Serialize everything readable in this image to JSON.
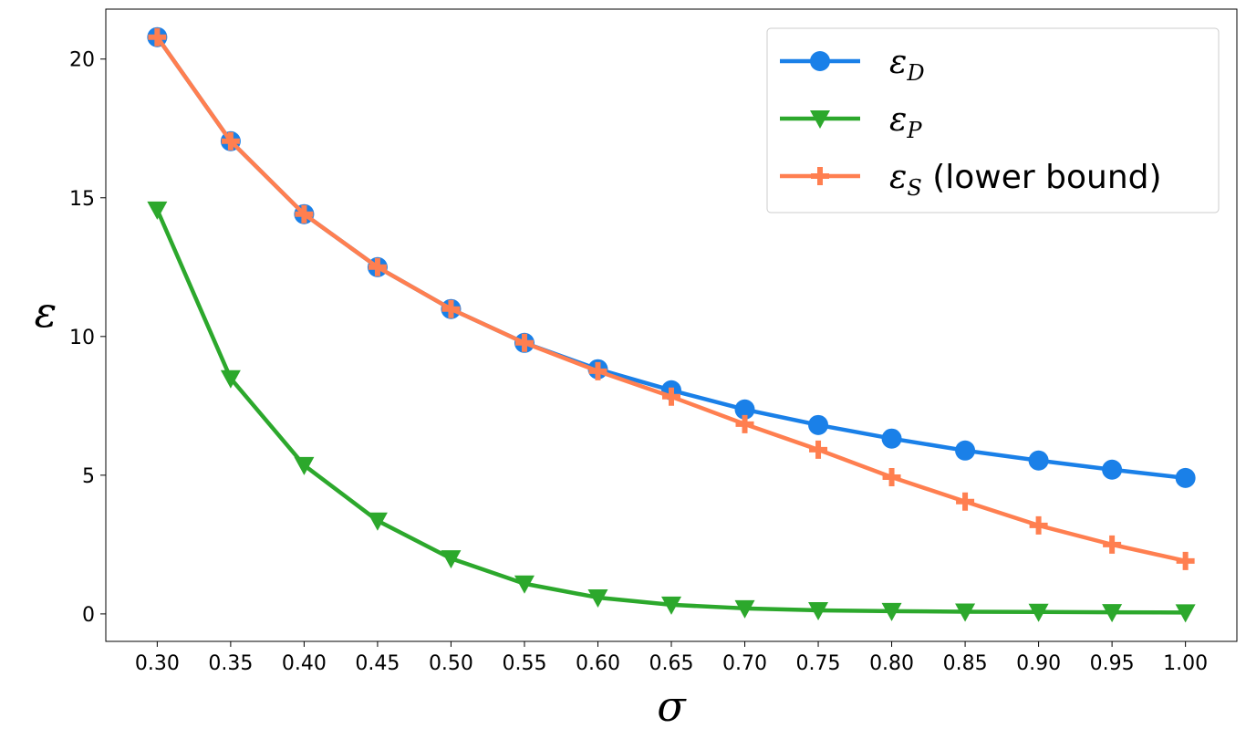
{
  "chart_data": {
    "type": "line",
    "title": "",
    "xlabel": "σ",
    "ylabel": "ε",
    "xlim": [
      0.265,
      1.035
    ],
    "ylim": [
      -0.99,
      21.8
    ],
    "grid": false,
    "legend_position": "top-right",
    "x": [
      0.3,
      0.35,
      0.4,
      0.45,
      0.5,
      0.55,
      0.6,
      0.65,
      0.7,
      0.75,
      0.8,
      0.85,
      0.9,
      0.95,
      1.0
    ],
    "x_ticks": [
      "0.30",
      "0.35",
      "0.40",
      "0.45",
      "0.50",
      "0.55",
      "0.60",
      "0.65",
      "0.70",
      "0.75",
      "0.80",
      "0.85",
      "0.90",
      "0.95",
      "1.00"
    ],
    "y_ticks": [
      "0",
      "5",
      "10",
      "15",
      "20"
    ],
    "series": [
      {
        "name": "ε_D",
        "name_main": "ε",
        "name_sub": "D",
        "name_suffix": "",
        "color": "#1a80e8",
        "marker": "circle",
        "values": [
          20.79,
          17.04,
          14.41,
          12.5,
          10.99,
          9.77,
          8.82,
          8.06,
          7.37,
          6.81,
          6.32,
          5.89,
          5.53,
          5.2,
          4.9
        ]
      },
      {
        "name": "ε_P",
        "name_main": "ε",
        "name_sub": "P",
        "name_suffix": "",
        "color": "#2ca82c",
        "marker": "triangle-down",
        "values": [
          14.57,
          8.49,
          5.36,
          3.36,
          2.0,
          1.09,
          0.59,
          0.33,
          0.2,
          0.13,
          0.1,
          0.08,
          0.07,
          0.06,
          0.05
        ]
      },
      {
        "name": "ε_S (lower bound)",
        "name_main": "ε",
        "name_sub": "S",
        "name_suffix": " (lower bound)",
        "color": "#ff7f50",
        "marker": "plus",
        "values": [
          20.79,
          17.04,
          14.41,
          12.5,
          10.99,
          9.77,
          8.75,
          7.83,
          6.84,
          5.92,
          4.93,
          4.05,
          3.19,
          2.5,
          1.91
        ]
      }
    ]
  }
}
